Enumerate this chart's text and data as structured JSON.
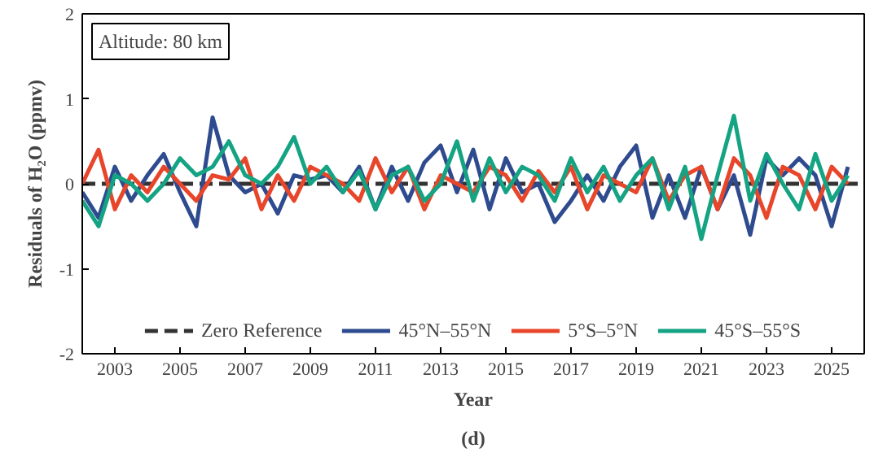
{
  "chart_data": {
    "type": "line",
    "xlabel": "Year",
    "ylabel": "Residuals of H₂O (ppmv)",
    "annotations": [
      "Altitude: 80 km",
      "(d)"
    ],
    "x": [
      2002,
      2002.5,
      2003,
      2003.5,
      2004,
      2004.5,
      2005,
      2005.5,
      2006,
      2006.5,
      2007,
      2007.5,
      2008,
      2008.5,
      2009,
      2009.5,
      2010,
      2010.5,
      2011,
      2011.5,
      2012,
      2012.5,
      2013,
      2013.5,
      2014,
      2014.5,
      2015,
      2015.5,
      2016,
      2016.5,
      2017,
      2017.5,
      2018,
      2018.5,
      2019,
      2019.5,
      2020,
      2020.5,
      2021,
      2021.5,
      2022,
      2022.5,
      2023,
      2023.5,
      2024,
      2024.5,
      2025,
      2025.5
    ],
    "series": [
      {
        "name": "Zero Reference",
        "color": "#333333",
        "line_style": "dashed",
        "x": [
          2002,
          2026
        ],
        "values": [
          0,
          0
        ]
      },
      {
        "name": "45°N–55°N",
        "color": "#2f4b8f",
        "values": [
          -0.1,
          -0.4,
          0.2,
          -0.2,
          0.1,
          0.35,
          -0.1,
          -0.5,
          0.78,
          0.1,
          -0.1,
          0.0,
          -0.35,
          0.1,
          0.05,
          0.1,
          -0.1,
          0.2,
          -0.3,
          0.2,
          -0.2,
          0.25,
          0.45,
          -0.1,
          0.4,
          -0.3,
          0.3,
          -0.1,
          0.0,
          -0.45,
          -0.2,
          0.1,
          -0.2,
          0.2,
          0.45,
          -0.4,
          0.1,
          -0.4,
          0.2,
          -0.3,
          0.1,
          -0.6,
          0.3,
          0.1,
          0.3,
          0.1,
          -0.5,
          0.2
        ]
      },
      {
        "name": "5°S–5°N",
        "color": "#e8462a",
        "values": [
          0.0,
          0.4,
          -0.3,
          0.1,
          -0.1,
          0.2,
          0.0,
          -0.2,
          0.1,
          0.05,
          0.3,
          -0.3,
          0.1,
          -0.2,
          0.2,
          0.1,
          0.0,
          -0.2,
          0.3,
          -0.1,
          0.2,
          -0.3,
          0.1,
          0.0,
          -0.1,
          0.2,
          0.1,
          -0.2,
          0.15,
          -0.1,
          0.2,
          -0.3,
          0.1,
          0.0,
          -0.1,
          0.3,
          -0.2,
          0.1,
          0.2,
          -0.3,
          0.3,
          0.1,
          -0.4,
          0.2,
          0.1,
          -0.3,
          0.2,
          0.0
        ]
      },
      {
        "name": "45°S–55°S",
        "color": "#14a383",
        "values": [
          -0.2,
          -0.5,
          0.1,
          0.0,
          -0.2,
          0.0,
          0.3,
          0.1,
          0.2,
          0.5,
          0.1,
          0.0,
          0.2,
          0.55,
          0.0,
          0.2,
          -0.1,
          0.15,
          -0.3,
          0.1,
          0.2,
          -0.2,
          0.0,
          0.5,
          -0.2,
          0.3,
          -0.1,
          0.2,
          0.1,
          -0.2,
          0.3,
          -0.1,
          0.2,
          -0.2,
          0.1,
          0.3,
          -0.3,
          0.2,
          -0.65,
          0.1,
          0.8,
          -0.2,
          0.35,
          0.0,
          -0.3,
          0.35,
          -0.2,
          0.1
        ]
      }
    ],
    "line_style": "solid",
    "xlim": [
      2002,
      2026
    ],
    "ylim": [
      -2,
      2
    ],
    "xticks": [
      2003,
      2005,
      2007,
      2009,
      2011,
      2013,
      2015,
      2017,
      2019,
      2021,
      2023,
      2025
    ],
    "yticks": [
      -2,
      -1,
      0,
      1,
      2
    ],
    "grid": false,
    "legend": "bottom"
  }
}
